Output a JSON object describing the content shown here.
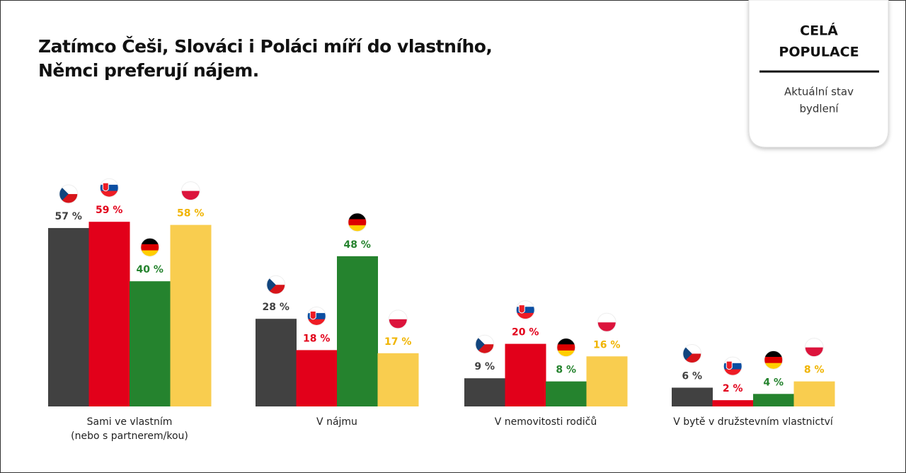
{
  "chart_data": {
    "type": "bar",
    "title": [
      "Zatímco Češi, Slováci i Poláci míří do vlastního,",
      "Němci preferují nájem."
    ],
    "categories": [
      [
        "Sami ve vlastním",
        "(nebo s partnerem/kou)"
      ],
      [
        "V nájmu"
      ],
      [
        "V nemovitosti rodičů"
      ],
      [
        "V bytě v družstevním vlastnictví"
      ]
    ],
    "series": [
      {
        "color": "#414141",
        "label_color": "#414141",
        "values": [
          57,
          28,
          9,
          6
        ],
        "value_labels": [
          "57 %",
          "28 %",
          "9 %",
          "6 %"
        ]
      },
      {
        "color": "#e2001a",
        "label_color": "#e2001a",
        "values": [
          59,
          18,
          20,
          2
        ],
        "value_labels": [
          "59 %",
          "18 %",
          "20 %",
          "2 %"
        ]
      },
      {
        "color": "#25832e",
        "label_color": "#25832e",
        "values": [
          40,
          48,
          8,
          4
        ],
        "value_labels": [
          "40 %",
          "48 %",
          "8 %",
          "4 %"
        ]
      },
      {
        "color": "#f9cd4f",
        "label_color": "#f0b400",
        "values": [
          58,
          17,
          16,
          8
        ],
        "value_labels": [
          "58 %",
          "17 %",
          "16 %",
          "8 %"
        ]
      }
    ]
  },
  "panel": {
    "title": [
      "CELÁ",
      "POPULACE"
    ],
    "subtitle": [
      "Aktuální stav",
      "bydlení"
    ]
  }
}
